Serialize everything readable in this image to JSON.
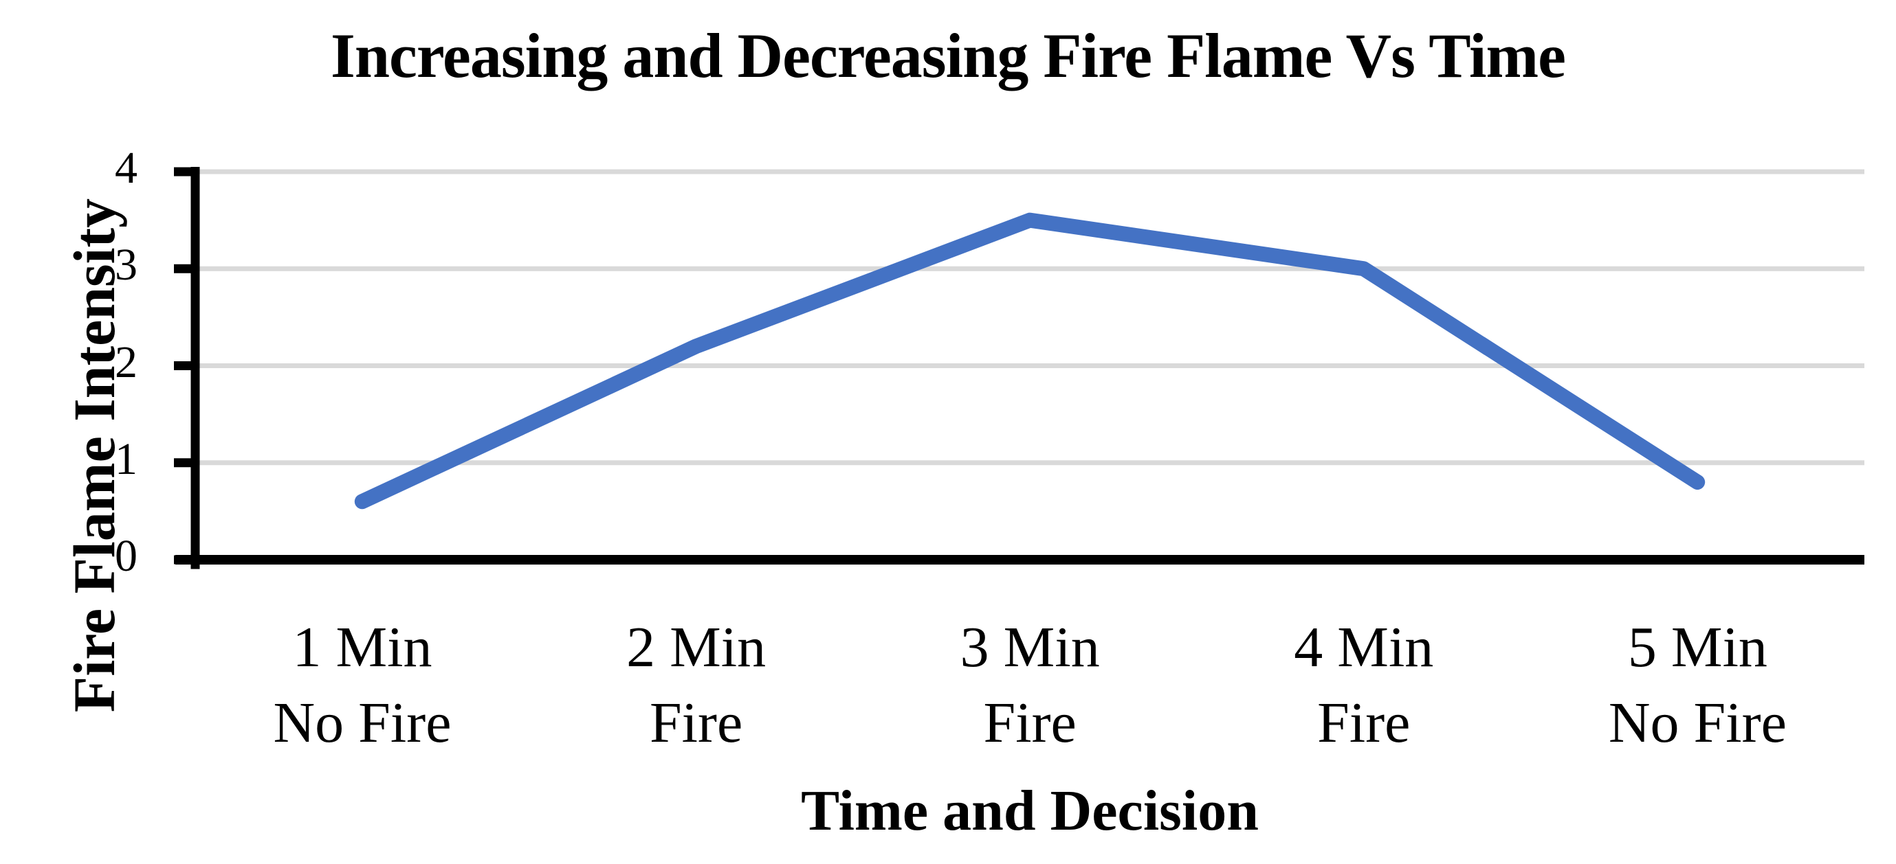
{
  "chart_data": {
    "type": "line",
    "title": "Increasing and Decreasing Fire Flame Vs Time",
    "xlabel": "Time and Decision",
    "ylabel": "Fire Flame Intensity",
    "categories": [
      [
        "1 Min",
        "No Fire"
      ],
      [
        "2 Min",
        "Fire"
      ],
      [
        "3 Min",
        "Fire"
      ],
      [
        "4 Min",
        "Fire"
      ],
      [
        "5 Min",
        "No Fire"
      ]
    ],
    "values": [
      0.6,
      2.2,
      3.5,
      3.0,
      0.8
    ],
    "yticks": [
      0,
      1,
      2,
      3,
      4
    ],
    "ylim": [
      0,
      4
    ],
    "grid": true,
    "legend": "none",
    "line_color": "#4472C4",
    "gridline_color": "#D9D9D9",
    "axis_color": "#000000",
    "text_color": "#000000",
    "background_color": "#FFFFFF"
  }
}
